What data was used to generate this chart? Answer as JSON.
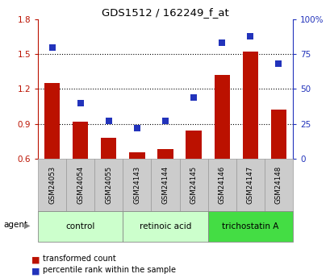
{
  "title": "GDS1512 / 162249_f_at",
  "categories": [
    "GSM24053",
    "GSM24054",
    "GSM24055",
    "GSM24143",
    "GSM24144",
    "GSM24145",
    "GSM24146",
    "GSM24147",
    "GSM24148"
  ],
  "red_values": [
    1.25,
    0.92,
    0.78,
    0.65,
    0.68,
    0.84,
    1.32,
    1.52,
    1.02
  ],
  "blue_values": [
    80,
    40,
    27,
    22,
    27,
    44,
    83,
    88,
    68
  ],
  "ylim_left": [
    0.6,
    1.8
  ],
  "ylim_right": [
    0,
    100
  ],
  "yticks_left": [
    0.6,
    0.9,
    1.2,
    1.5,
    1.8
  ],
  "yticks_right": [
    0,
    25,
    50,
    75,
    100
  ],
  "ytick_labels_right": [
    "0",
    "25",
    "50",
    "75",
    "100%"
  ],
  "red_color": "#bb1100",
  "blue_color": "#2233bb",
  "bar_width": 0.55,
  "agent_label": "agent",
  "legend_red": "transformed count",
  "legend_blue": "percentile rank within the sample",
  "group_light_color": "#ccffcc",
  "group_dark_color": "#44dd44",
  "xtick_box_color": "#cccccc",
  "xtick_box_edge": "#999999"
}
